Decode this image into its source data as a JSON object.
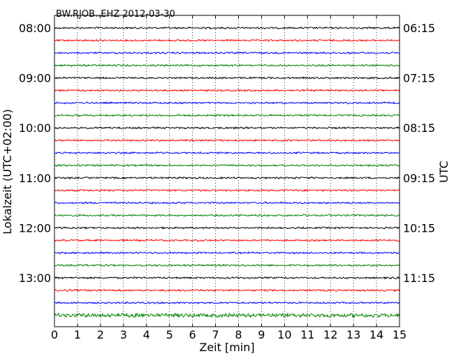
{
  "chart_data": {
    "type": "line",
    "title": "BW.RJOB..EHZ 2012-03-30",
    "xlabel": "Zeit  [min]",
    "ylabel": "Lokalzeit (UTC+02:00)",
    "ylabel_right": "UTC",
    "xlim": [
      0,
      15
    ],
    "x_ticks": [
      "0",
      "1",
      "2",
      "3",
      "4",
      "5",
      "6",
      "7",
      "8",
      "9",
      "10",
      "11",
      "12",
      "13",
      "14",
      "15"
    ],
    "grid": "vertical dotted",
    "minutes_per_line": 15,
    "line_count": 24,
    "first_line_local": "08:00",
    "left_tick_labels": [
      "08:00",
      "09:00",
      "10:00",
      "11:00",
      "12:00",
      "13:00"
    ],
    "right_tick_labels": [
      "06:15",
      "07:15",
      "08:15",
      "09:15",
      "10:15",
      "11:15"
    ],
    "color_cycle": [
      "#000000",
      "#ff0000",
      "#0000ff",
      "#008000"
    ]
  }
}
